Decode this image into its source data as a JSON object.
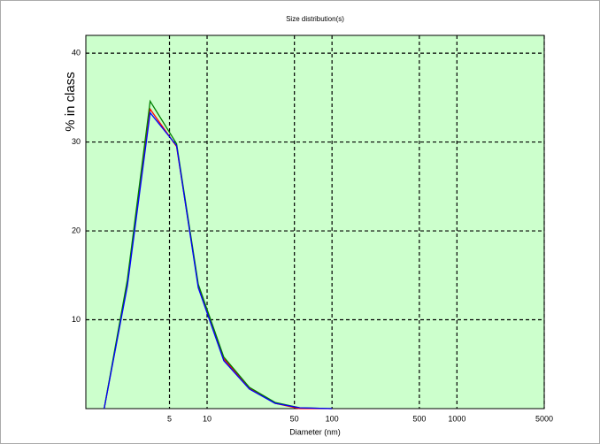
{
  "chart_data": {
    "type": "line",
    "title": "Size distribution(s)",
    "x_label": "Diameter (nm)",
    "y_label": "% in class",
    "x": [
      1.5,
      2.3,
      3.5,
      5.7,
      8.5,
      13.6,
      21.8,
      35,
      55,
      100
    ],
    "series": [
      {
        "color": "#ff0000",
        "values": [
          0,
          14,
          33.7,
          29.5,
          13.8,
          5.6,
          2.3,
          0.6,
          0,
          0
        ]
      },
      {
        "color": "#008000",
        "values": [
          0,
          14.5,
          34.6,
          29.8,
          14,
          5.8,
          2.4,
          0.7,
          0.1,
          0
        ]
      },
      {
        "color": "#0000ff",
        "values": [
          0,
          13.8,
          33.3,
          29.6,
          13.6,
          5.4,
          2.2,
          0.6,
          0.1,
          0
        ]
      }
    ],
    "xlim": [
      1.07,
      5000
    ],
    "xticks": [
      5,
      10,
      50,
      100,
      500,
      1000,
      5000
    ],
    "xscale": "log",
    "ylim": [
      0,
      42
    ],
    "yticks": [
      10,
      20,
      30,
      40
    ],
    "grid": true,
    "background": "#ccffcc"
  }
}
